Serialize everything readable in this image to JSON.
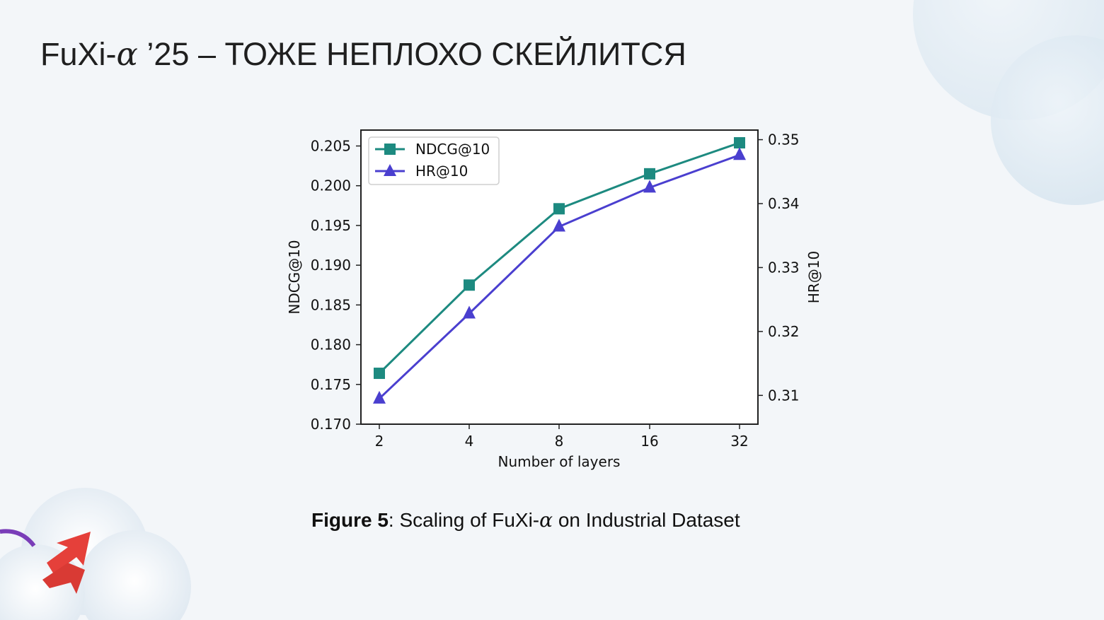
{
  "slide": {
    "title_prefix": "FuXi-",
    "title_alpha": "α",
    "title_suffix": " ’25 – ТОЖЕ НЕПЛОХО СКЕЙЛИТСЯ"
  },
  "caption": {
    "figure_label": "Figure 5",
    "text_prefix": ": Scaling of FuXi-",
    "alpha": "α",
    "text_suffix": " on Industrial Dataset"
  },
  "colors": {
    "ndcg": "#1d8a80",
    "hr": "#4a3fcf"
  },
  "chart_data": {
    "type": "line",
    "categories": [
      "2",
      "4",
      "8",
      "16",
      "32"
    ],
    "xlabel": "Number of layers",
    "ylabel_left": "NDCG@10",
    "ylabel_right": "HR@10",
    "ylim_left": [
      0.17,
      0.207
    ],
    "ylim_right": [
      0.3055,
      0.3515
    ],
    "yticks_left": [
      "0.170",
      "0.175",
      "0.180",
      "0.185",
      "0.190",
      "0.195",
      "0.200",
      "0.205"
    ],
    "yticks_right": [
      "0.31",
      "0.32",
      "0.33",
      "0.34",
      "0.35"
    ],
    "legend_position": "top-left",
    "grid": false,
    "series": [
      {
        "name": "NDCG@10",
        "axis": "left",
        "marker": "square",
        "values": [
          0.1764,
          0.1875,
          0.1971,
          0.2015,
          0.2054
        ]
      },
      {
        "name": "HR@10",
        "axis": "right",
        "marker": "triangle",
        "values": [
          0.3095,
          0.3228,
          0.3364,
          0.3425,
          0.3476
        ]
      }
    ]
  }
}
